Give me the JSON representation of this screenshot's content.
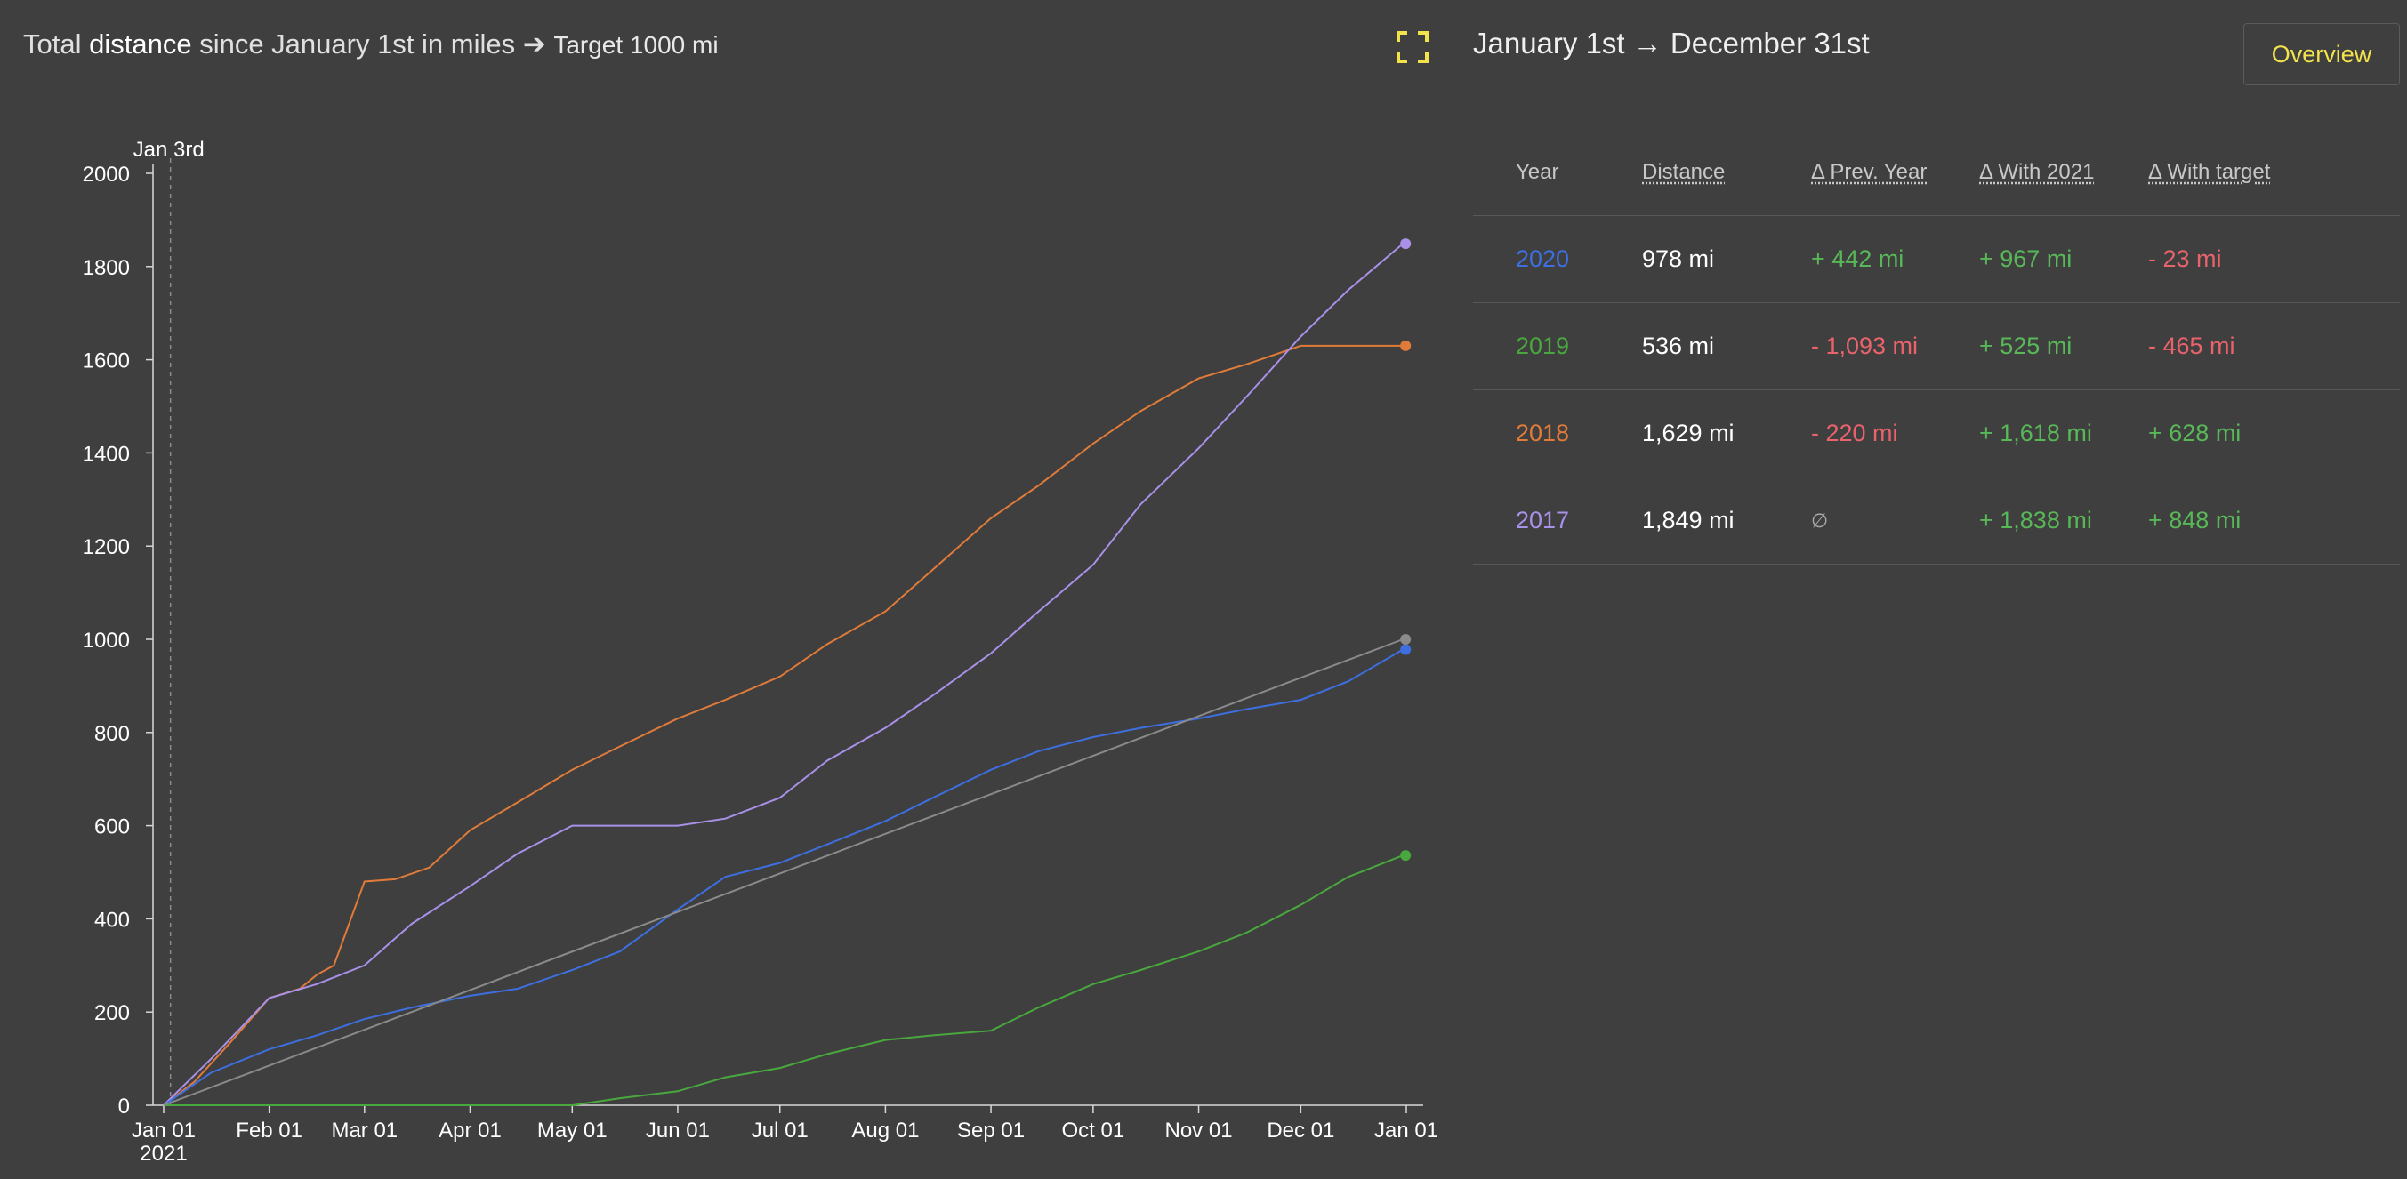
{
  "header": {
    "title_parts": [
      {
        "text": "Total ",
        "weight": "light"
      },
      {
        "text": "distance",
        "weight": "bold"
      },
      {
        "text": " since January 1st in miles ➔ ",
        "weight": "light"
      }
    ],
    "target_label": "Target 1000 mi"
  },
  "icons": {
    "expand": "expand-icon"
  },
  "panel": {
    "title": "January 1st → December 31st",
    "overview_label": "Overview"
  },
  "table": {
    "headers": [
      "Year",
      "Distance",
      "Δ Prev. Year",
      "Δ With 2021",
      "Δ With target"
    ],
    "rows": [
      {
        "year": "2020",
        "color": "#3d6fe0",
        "distance": "978 mi",
        "prev": "+ 442 mi",
        "prev_sign": "pos",
        "with2021": "+ 967 mi",
        "with2021_sign": "pos",
        "target": "- 23 mi",
        "target_sign": "neg"
      },
      {
        "year": "2019",
        "color": "#49a83d",
        "distance": "536 mi",
        "prev": "- 1,093 mi",
        "prev_sign": "neg",
        "with2021": "+ 525 mi",
        "with2021_sign": "pos",
        "target": "- 465 mi",
        "target_sign": "neg"
      },
      {
        "year": "2018",
        "color": "#e07b39",
        "distance": "1,629 mi",
        "prev": "- 220 mi",
        "prev_sign": "neg",
        "with2021": "+ 1,618 mi",
        "with2021_sign": "pos",
        "target": "+ 628 mi",
        "target_sign": "pos"
      },
      {
        "year": "2017",
        "color": "#a990e8",
        "distance": "1,849 mi",
        "prev": "∅",
        "prev_sign": "na",
        "with2021": "+ 1,838 mi",
        "with2021_sign": "pos",
        "target": "+ 848 mi",
        "target_sign": "pos"
      }
    ]
  },
  "chart_data": {
    "type": "line",
    "x_ticks": [
      "Jan 01",
      "Feb 01",
      "Mar 01",
      "Apr 01",
      "May 01",
      "Jun 01",
      "Jul 01",
      "Aug 01",
      "Sep 01",
      "Oct 01",
      "Nov 01",
      "Dec 01",
      "Jan 01"
    ],
    "x_year_label": "2021",
    "x_domain": [
      "2021-01-01",
      "2022-01-01"
    ],
    "y_ticks": [
      0,
      200,
      400,
      600,
      800,
      1000,
      1200,
      1400,
      1600,
      1800,
      2000
    ],
    "ylim": [
      0,
      2000
    ],
    "marker": {
      "label": "Jan 3rd",
      "date": "2021-01-03"
    },
    "series": [
      {
        "color": "#e07b39",
        "points": [
          [
            "2021-01-01",
            0
          ],
          [
            "2021-01-10",
            50
          ],
          [
            "2021-01-20",
            130
          ],
          [
            "2021-02-01",
            230
          ],
          [
            "2021-02-10",
            250
          ],
          [
            "2021-02-15",
            280
          ],
          [
            "2021-02-20",
            300
          ],
          [
            "2021-02-25",
            400
          ],
          [
            "2021-03-01",
            480
          ],
          [
            "2021-03-10",
            485
          ],
          [
            "2021-03-20",
            510
          ],
          [
            "2021-04-01",
            590
          ],
          [
            "2021-04-15",
            650
          ],
          [
            "2021-05-01",
            720
          ],
          [
            "2021-05-15",
            770
          ],
          [
            "2021-06-01",
            830
          ],
          [
            "2021-06-15",
            870
          ],
          [
            "2021-07-01",
            920
          ],
          [
            "2021-07-15",
            990
          ],
          [
            "2021-08-01",
            1060
          ],
          [
            "2021-08-15",
            1150
          ],
          [
            "2021-09-01",
            1260
          ],
          [
            "2021-09-15",
            1330
          ],
          [
            "2021-10-01",
            1420
          ],
          [
            "2021-10-15",
            1490
          ],
          [
            "2021-11-01",
            1560
          ],
          [
            "2021-11-15",
            1590
          ],
          [
            "2021-12-01",
            1630
          ],
          [
            "2021-12-31",
            1630
          ]
        ]
      },
      {
        "color": "#a990e8",
        "points": [
          [
            "2021-01-01",
            0
          ],
          [
            "2021-01-15",
            100
          ],
          [
            "2021-02-01",
            230
          ],
          [
            "2021-02-15",
            260
          ],
          [
            "2021-03-01",
            300
          ],
          [
            "2021-03-15",
            390
          ],
          [
            "2021-04-01",
            470
          ],
          [
            "2021-04-15",
            540
          ],
          [
            "2021-05-01",
            600
          ],
          [
            "2021-05-15",
            600
          ],
          [
            "2021-06-01",
            600
          ],
          [
            "2021-06-15",
            615
          ],
          [
            "2021-07-01",
            660
          ],
          [
            "2021-07-15",
            740
          ],
          [
            "2021-08-01",
            810
          ],
          [
            "2021-08-15",
            880
          ],
          [
            "2021-09-01",
            970
          ],
          [
            "2021-09-15",
            1060
          ],
          [
            "2021-10-01",
            1160
          ],
          [
            "2021-10-15",
            1290
          ],
          [
            "2021-11-01",
            1410
          ],
          [
            "2021-11-15",
            1520
          ],
          [
            "2021-12-01",
            1650
          ],
          [
            "2021-12-15",
            1750
          ],
          [
            "2021-12-31",
            1849
          ]
        ]
      },
      {
        "color": "#3d6fe0",
        "points": [
          [
            "2021-01-01",
            0
          ],
          [
            "2021-01-15",
            70
          ],
          [
            "2021-02-01",
            120
          ],
          [
            "2021-02-15",
            150
          ],
          [
            "2021-03-01",
            185
          ],
          [
            "2021-03-15",
            210
          ],
          [
            "2021-04-01",
            235
          ],
          [
            "2021-04-15",
            250
          ],
          [
            "2021-05-01",
            290
          ],
          [
            "2021-05-15",
            330
          ],
          [
            "2021-06-01",
            420
          ],
          [
            "2021-06-15",
            490
          ],
          [
            "2021-07-01",
            520
          ],
          [
            "2021-07-15",
            560
          ],
          [
            "2021-08-01",
            610
          ],
          [
            "2021-08-15",
            660
          ],
          [
            "2021-09-01",
            720
          ],
          [
            "2021-09-15",
            760
          ],
          [
            "2021-10-01",
            790
          ],
          [
            "2021-10-15",
            810
          ],
          [
            "2021-11-01",
            830
          ],
          [
            "2021-11-15",
            850
          ],
          [
            "2021-12-01",
            870
          ],
          [
            "2021-12-15",
            910
          ],
          [
            "2021-12-31",
            978
          ]
        ]
      },
      {
        "color": "#49a83d",
        "points": [
          [
            "2021-01-01",
            0
          ],
          [
            "2021-05-01",
            0
          ],
          [
            "2021-05-15",
            15
          ],
          [
            "2021-06-01",
            30
          ],
          [
            "2021-06-15",
            60
          ],
          [
            "2021-07-01",
            80
          ],
          [
            "2021-07-15",
            110
          ],
          [
            "2021-08-01",
            140
          ],
          [
            "2021-08-15",
            150
          ],
          [
            "2021-09-01",
            160
          ],
          [
            "2021-09-15",
            210
          ],
          [
            "2021-10-01",
            260
          ],
          [
            "2021-10-15",
            290
          ],
          [
            "2021-11-01",
            330
          ],
          [
            "2021-11-15",
            370
          ],
          [
            "2021-12-01",
            430
          ],
          [
            "2021-12-15",
            490
          ],
          [
            "2021-12-31",
            536
          ]
        ]
      },
      {
        "color": "#8a8a8a",
        "points": [
          [
            "2021-01-01",
            0
          ],
          [
            "2021-12-31",
            1000
          ]
        ]
      }
    ]
  }
}
